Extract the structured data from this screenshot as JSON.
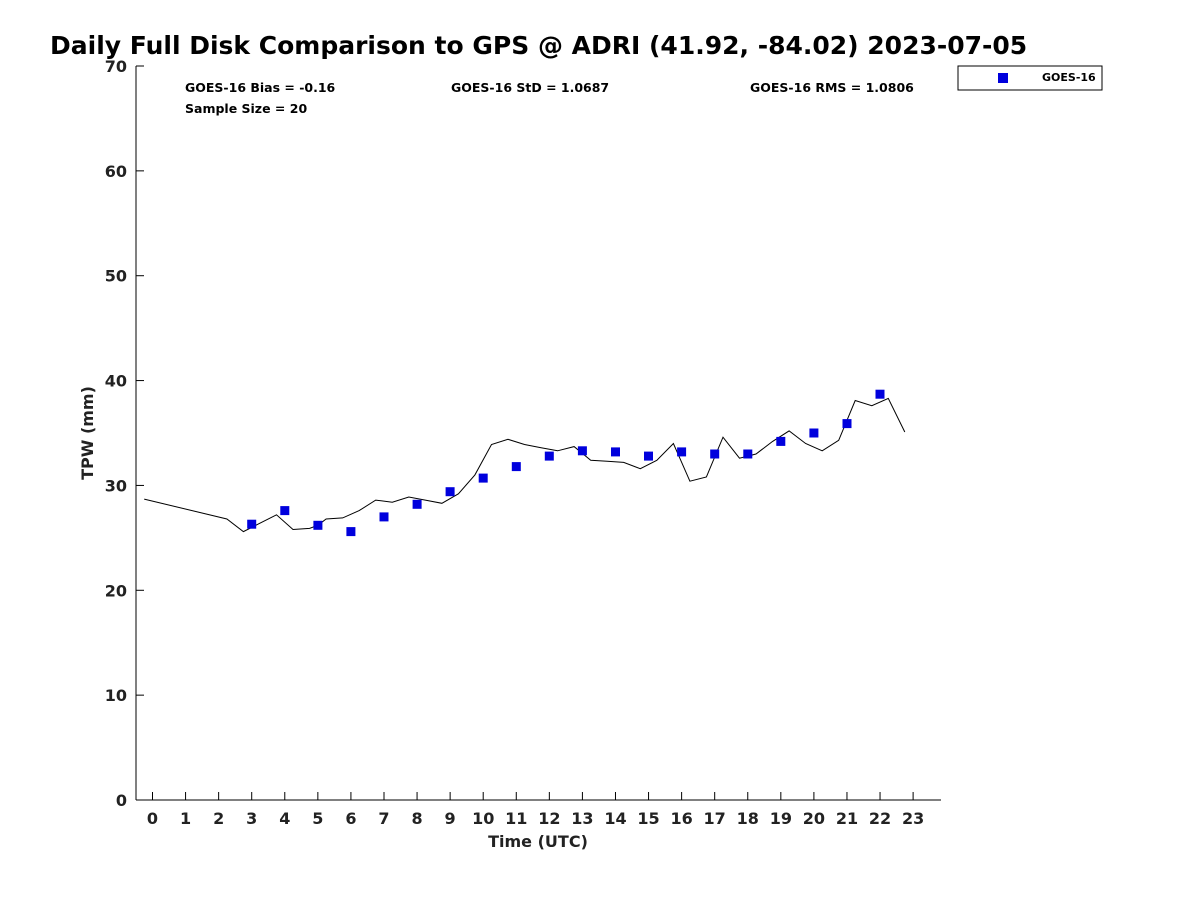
{
  "chart_data": {
    "type": "scatter",
    "title": "Daily Full Disk Comparison to GPS @ ADRI (41.92, -84.02) 2023-07-05",
    "xlabel": "Time (UTC)",
    "ylabel": "TPW (mm)",
    "xlim": [
      -0.5,
      23.8
    ],
    "ylim": [
      0,
      70
    ],
    "xticks": [
      0,
      1,
      2,
      3,
      4,
      5,
      6,
      7,
      8,
      9,
      10,
      11,
      12,
      13,
      14,
      15,
      16,
      17,
      18,
      19,
      20,
      21,
      22,
      23
    ],
    "yticks": [
      0,
      10,
      20,
      30,
      40,
      50,
      60,
      70
    ],
    "grid": false,
    "legend_position": "top-right, outside plot",
    "stats": {
      "bias": "GOES-16 Bias = -0.16",
      "std": "GOES-16 StD = 1.0687",
      "rms": "GOES-16 RMS = 1.0806",
      "sample_size": "Sample Size = 20"
    },
    "series": [
      {
        "name": "GOES-16",
        "marker": "square",
        "color": "#0000dd",
        "x": [
          3,
          4,
          5,
          6,
          7,
          8,
          9,
          10,
          11,
          12,
          13,
          14,
          15,
          16,
          17,
          18,
          19,
          20,
          21,
          22
        ],
        "y": [
          26.3,
          27.6,
          26.2,
          25.6,
          27.0,
          28.2,
          29.4,
          30.7,
          31.8,
          32.8,
          33.3,
          33.2,
          32.8,
          33.2,
          33.0,
          33.0,
          34.2,
          35.0,
          35.9,
          38.7
        ]
      },
      {
        "role": "GPS reference",
        "marker": "line",
        "color": "#000000",
        "x": [
          -0.25,
          2.25,
          2.75,
          3.0,
          3.75,
          4.25,
          4.75,
          5.0,
          5.25,
          5.75,
          6.25,
          6.75,
          7.25,
          7.75,
          8.25,
          8.75,
          9.25,
          9.75,
          10.25,
          10.75,
          11.25,
          11.75,
          12.25,
          12.75,
          13.25,
          13.75,
          14.25,
          14.75,
          15.25,
          15.75,
          16.25,
          16.75,
          17.25,
          17.75,
          18.25,
          18.75,
          19.25,
          19.75,
          20.25,
          20.75,
          21.25,
          21.75,
          22.25,
          22.75
        ],
        "y": [
          28.7,
          26.8,
          25.6,
          26.0,
          27.2,
          25.8,
          25.9,
          26.2,
          26.8,
          26.9,
          27.6,
          28.6,
          28.4,
          28.9,
          28.6,
          28.3,
          29.2,
          31.0,
          33.9,
          34.4,
          33.9,
          33.6,
          33.3,
          33.7,
          32.4,
          32.3,
          32.2,
          31.6,
          32.4,
          34.0,
          30.4,
          30.8,
          34.6,
          32.6,
          33.0,
          34.2,
          35.2,
          34.0,
          33.3,
          34.3,
          38.1,
          37.6,
          38.3,
          35.1
        ]
      }
    ]
  }
}
